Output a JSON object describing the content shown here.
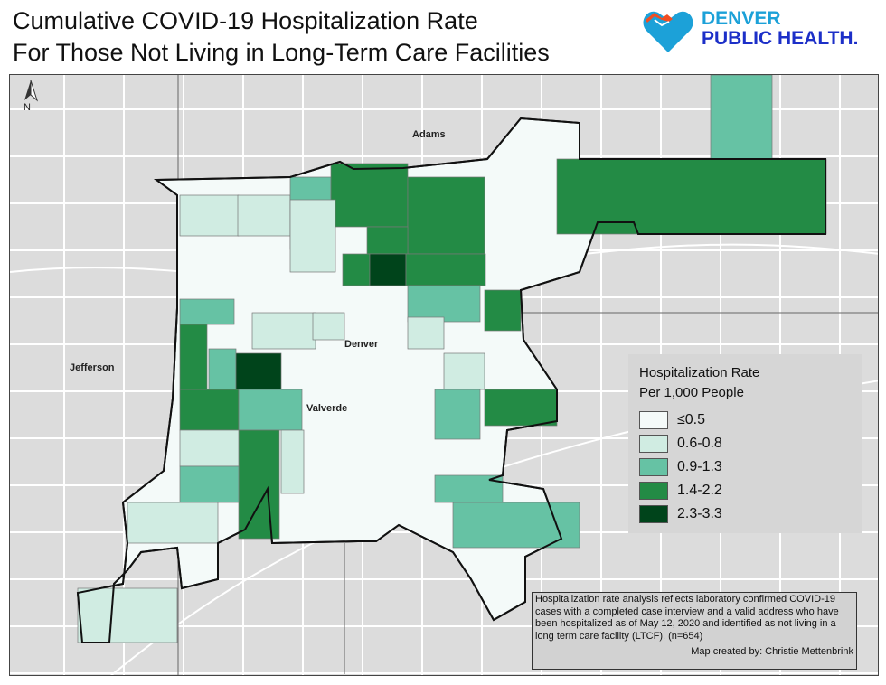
{
  "title_line1": "Cumulative COVID-19 Hospitalization Rate",
  "title_line2": "For Those Not Living in Long-Term Care Facilities",
  "logo": {
    "line1": "DENVER",
    "line2": "PUBLIC HEALTH.",
    "icon": "heart-mountain-logo"
  },
  "north_arrow": "N",
  "places": {
    "adams": "Adams",
    "denver": "Denver",
    "jefferson": "Jefferson",
    "valverde": "Valverde"
  },
  "legend": {
    "title_line1": "Hospitalization Rate",
    "title_line2": "Per 1,000 People",
    "items": [
      {
        "label": "≤0.5",
        "color": "#f4faf9"
      },
      {
        "label": "0.6-0.8",
        "color": "#d0ece2"
      },
      {
        "label": "0.9-1.3",
        "color": "#66c2a4"
      },
      {
        "label": "1.4-2.2",
        "color": "#238b45"
      },
      {
        "label": "2.3-3.3",
        "color": "#00441b"
      }
    ]
  },
  "tract_classes": [
    1,
    1,
    2,
    3,
    3,
    3,
    3,
    4,
    3,
    3,
    2,
    2,
    3,
    2,
    4,
    3,
    2,
    3,
    1,
    2,
    1,
    1,
    1,
    1,
    1,
    1,
    1,
    2,
    3,
    2,
    2,
    1,
    3,
    2
  ],
  "note": "Hospitalization rate analysis reflects laboratory confirmed COVID-19 cases with a completed case interview and a valid address who have been hospitalized as of May 12, 2020 and identified as not living in a long term care facility (LTCF).  (n=654)",
  "credit": "Map created by: Christie Mettenbrink"
}
